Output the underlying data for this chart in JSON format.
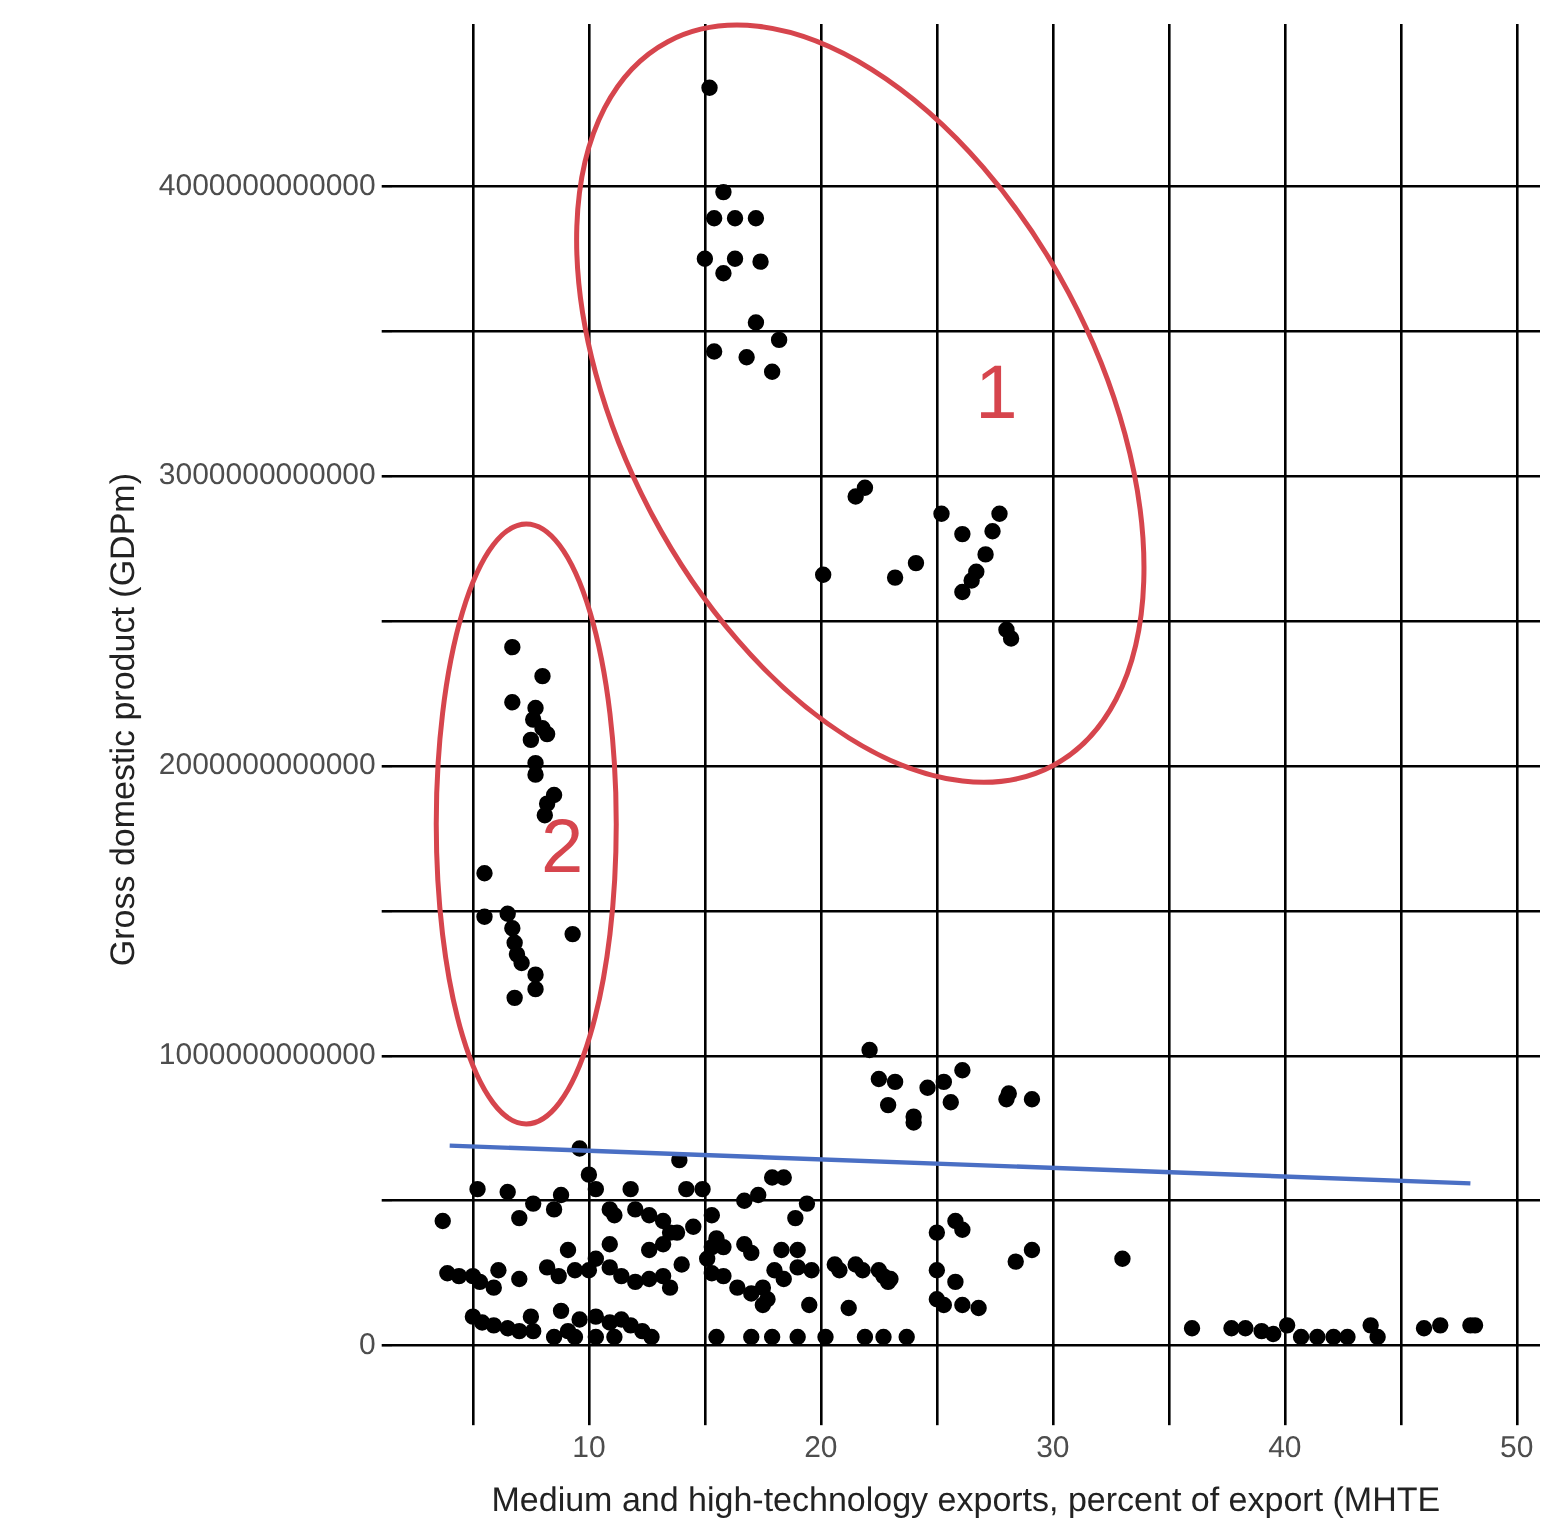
{
  "chart_data": {
    "type": "scatter",
    "xlabel": "Medium and high-technology exports, percent of export (MHTE",
    "ylabel": "Gross domestic product (GDPm)",
    "xlim": [
      1.5,
      51
    ],
    "xticks": [
      {
        "value": 5,
        "label": null
      },
      10,
      {
        "value": 15,
        "label": null
      },
      20,
      {
        "value": 25,
        "label": null
      },
      30,
      {
        "value": 35,
        "label": null
      },
      40,
      {
        "value": 45,
        "label": null
      },
      50
    ],
    "ylim": [
      -240000000000.0,
      4560000000000.0
    ],
    "yticks": [
      0,
      {
        "value": 500000000000.0,
        "label": null
      },
      1000000000000,
      {
        "value": 1500000000000.0,
        "label": null
      },
      2000000000000,
      {
        "value": 2500000000000.0,
        "label": null
      },
      3000000000000,
      {
        "value": 3500000000000.0,
        "label": null
      },
      4000000000000
    ],
    "grid": true,
    "legend": false,
    "annotations": [
      "1",
      "2"
    ],
    "series": [
      {
        "color": "#000000",
        "marker": "circle",
        "x": [
          15.2,
          15.8,
          15.4,
          16.3,
          17.2,
          15.0,
          16.3,
          17.4,
          15.8,
          17.2,
          18.2,
          15.4,
          16.8,
          17.9,
          21.5,
          21.9,
          20.1,
          23.2,
          24.1,
          25.2,
          26.1,
          27.7,
          27.4,
          27.1,
          26.7,
          26.5,
          26.1,
          28.0,
          28.2,
          6.7,
          8.0,
          6.7,
          7.7,
          7.6,
          8.0,
          8.2,
          7.5,
          7.7,
          7.7,
          8.5,
          8.2,
          8.1,
          5.5,
          5.5,
          6.5,
          6.7,
          6.8,
          6.9,
          7.1,
          9.3,
          7.7,
          7.7,
          6.8,
          22.1,
          22.5,
          23.2,
          22.9,
          24.0,
          24.0,
          24.6,
          25.3,
          25.6,
          26.1,
          28.0,
          28.1,
          29.1,
          25.0,
          25.8,
          26.1,
          28.4,
          29.1,
          33.0,
          25.0,
          25.8,
          20.8,
          21.5,
          21.8,
          22.7,
          22.9,
          21.2,
          25.0,
          25.3,
          26.1,
          26.8,
          21.9,
          22.7,
          23.7,
          36.0,
          37.7,
          38.3,
          39.0,
          39.5,
          40.1,
          40.7,
          41.4,
          42.1,
          42.7,
          43.7,
          44.0,
          46.0,
          46.7,
          48.0,
          48.2,
          3.7,
          5.2,
          6.5,
          7.0,
          7.6,
          8.5,
          8.8,
          10.0,
          10.3,
          9.6,
          10.9,
          11.1,
          11.8,
          12.0,
          12.6,
          13.2,
          13.5,
          10.9,
          12.6,
          13.2,
          13.8,
          13.9,
          14.2,
          14.9,
          15.3,
          15.5,
          15.3,
          15.8,
          14.5,
          16.7,
          17.3,
          17.9,
          18.4,
          18.9,
          19.4,
          16.7,
          17.0,
          18.3,
          19.0,
          9.1,
          3.9,
          4.4,
          5.0,
          5.3,
          5.9,
          6.1,
          7.0,
          8.2,
          8.7,
          9.4,
          10.0,
          10.3,
          10.9,
          11.4,
          12.0,
          12.6,
          13.2,
          13.5,
          14.0,
          15.1,
          15.3,
          15.8,
          16.4,
          17.0,
          17.5,
          18.0,
          18.4,
          19.0,
          19.6,
          17.5,
          17.7,
          19.5,
          20.6,
          22.5,
          23.0,
          5.0,
          5.4,
          5.9,
          6.5,
          7.0,
          7.5,
          7.6,
          8.8,
          9.1,
          9.6,
          10.3,
          10.9,
          11.4,
          11.8,
          12.3,
          12.7,
          8.5,
          9.4,
          10.3,
          11.1,
          15.5,
          17.0,
          17.9,
          19.0,
          20.2
        ],
        "values": [
          4340000000000.0,
          3980000000000.0,
          3890000000000.0,
          3890000000000.0,
          3890000000000.0,
          3750000000000.0,
          3750000000000.0,
          3740000000000.0,
          3700000000000.0,
          3530000000000.0,
          3470000000000.0,
          3430000000000.0,
          3410000000000.0,
          3360000000000.0,
          2930000000000.0,
          2960000000000.0,
          2660000000000.0,
          2650000000000.0,
          2700000000000.0,
          2870000000000.0,
          2800000000000.0,
          2870000000000.0,
          2810000000000.0,
          2730000000000.0,
          2670000000000.0,
          2640000000000.0,
          2600000000000.0,
          2470000000000.0,
          2440000000000.0,
          2410000000000.0,
          2310000000000.0,
          2220000000000.0,
          2200000000000.0,
          2160000000000.0,
          2130000000000.0,
          2110000000000.0,
          2090000000000.0,
          2010000000000.0,
          1970000000000.0,
          1900000000000.0,
          1870000000000.0,
          1830000000000.0,
          1630000000000.0,
          1480000000000.0,
          1490000000000.0,
          1440000000000.0,
          1390000000000.0,
          1350000000000.0,
          1320000000000.0,
          1420000000000.0,
          1280000000000.0,
          1230000000000.0,
          1200000000000.0,
          1020000000000.0,
          920000000000.0,
          910000000000.0,
          830000000000.0,
          790000000000.0,
          770000000000.0,
          890000000000.0,
          910000000000.0,
          840000000000.0,
          950000000000.0,
          850000000000.0,
          870000000000.0,
          850000000000.0,
          390000000000.0,
          430000000000.0,
          400000000000.0,
          290000000000.0,
          330000000000.0,
          300000000000.0,
          260000000000.0,
          220000000000.0,
          260000000000.0,
          280000000000.0,
          260000000000.0,
          240000000000.0,
          220000000000.0,
          130000000000.0,
          160000000000.0,
          140000000000.0,
          140000000000.0,
          130000000000.0,
          30000000000.0,
          30000000000.0,
          30000000000.0,
          60000000000.0,
          60000000000.0,
          60000000000.0,
          50000000000.0,
          40000000000.0,
          70000000000.0,
          30000000000.0,
          30000000000.0,
          30000000000.0,
          30000000000.0,
          70000000000.0,
          30000000000.0,
          60000000000.0,
          70000000000.0,
          70000000000.0,
          70000000000.0,
          430000000000.0,
          540000000000.0,
          530000000000.0,
          440000000000.0,
          490000000000.0,
          470000000000.0,
          520000000000.0,
          590000000000.0,
          540000000000.0,
          680000000000.0,
          470000000000.0,
          450000000000.0,
          540000000000.0,
          470000000000.0,
          450000000000.0,
          430000000000.0,
          390000000000.0,
          350000000000.0,
          330000000000.0,
          350000000000.0,
          390000000000.0,
          640000000000.0,
          540000000000.0,
          540000000000.0,
          450000000000.0,
          370000000000.0,
          340000000000.0,
          340000000000.0,
          410000000000.0,
          500000000000.0,
          520000000000.0,
          580000000000.0,
          580000000000.0,
          440000000000.0,
          490000000000.0,
          350000000000.0,
          320000000000.0,
          330000000000.0,
          330000000000.0,
          330000000000.0,
          250000000000.0,
          240000000000.0,
          240000000000.0,
          220000000000.0,
          200000000000.0,
          260000000000.0,
          230000000000.0,
          270000000000.0,
          240000000000.0,
          260000000000.0,
          260000000000.0,
          300000000000.0,
          270000000000.0,
          240000000000.0,
          220000000000.0,
          230000000000.0,
          240000000000.0,
          200000000000.0,
          280000000000.0,
          300000000000.0,
          250000000000.0,
          240000000000.0,
          200000000000.0,
          180000000000.0,
          200000000000.0,
          260000000000.0,
          230000000000.0,
          270000000000.0,
          260000000000.0,
          140000000000.0,
          160000000000.0,
          140000000000.0,
          280000000000.0,
          260000000000.0,
          230000000000.0,
          100000000000.0,
          80000000000.0,
          70000000000.0,
          60000000000.0,
          50000000000.0,
          100000000000.0,
          50000000000.0,
          120000000000.0,
          50000000000.0,
          90000000000.0,
          100000000000.0,
          80000000000.0,
          90000000000.0,
          70000000000.0,
          50000000000.0,
          30000000000.0,
          30000000000.0,
          30000000000.0,
          30000000000.0,
          30000000000.0,
          30000000000.0,
          30000000000.0,
          30000000000.0,
          30000000000.0,
          30000000000.0
        ]
      },
      {
        "type": "line",
        "color": "#4a6fc4",
        "x": [
          4,
          48
        ],
        "values": [
          690000000000.0,
          560000000000.0
        ]
      }
    ]
  }
}
